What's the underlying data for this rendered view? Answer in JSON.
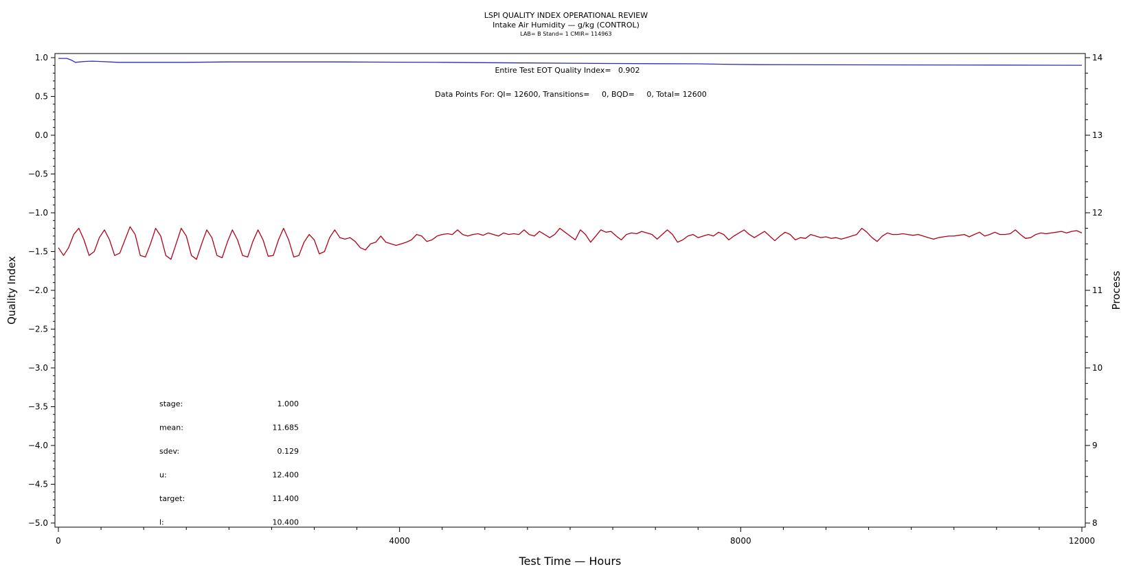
{
  "chart_data": {
    "type": "line",
    "title": "LSPI QUALITY INDEX OPERATIONAL REVIEW",
    "subtitle": "Intake Air Humidity — g/kg (CONTROL)",
    "subtitle2": "LAB= B Stand= 1 CMIR= 114963",
    "xlabel": "Test Time — Hours",
    "ylabel_left": "Quality Index",
    "ylabel_right": "Process",
    "xlim": [
      0,
      12000
    ],
    "ylim_left": [
      -5.0,
      1.0
    ],
    "ylim_right": [
      8,
      14
    ],
    "x_ticks": [
      "0",
      "4000",
      "8000",
      "12000"
    ],
    "y_left_ticks": [
      "1.0",
      "0.5",
      "0.0",
      "−0.5",
      "−1.0",
      "−1.5",
      "−2.0",
      "−2.5",
      "−3.0",
      "−3.5",
      "−4.0",
      "−4.5",
      "−5.0"
    ],
    "y_right_ticks": [
      "14",
      "13",
      "12",
      "11",
      "10",
      "9",
      "8"
    ],
    "annotation_eot": "Entire Test EOT Quality Index=   0.902",
    "annotation_points": "Data Points For: QI= 12600, Transitions=     0, BQD=     0, Total= 12600",
    "stats": [
      {
        "label": "stage:",
        "value": "1.000"
      },
      {
        "label": "mean:",
        "value": "11.685"
      },
      {
        "label": "sdev:",
        "value": "0.129"
      },
      {
        "label": "u:",
        "value": "12.400"
      },
      {
        "label": "target:",
        "value": "11.400"
      },
      {
        "label": "l:",
        "value": "10.400"
      }
    ],
    "series": [
      {
        "axis": "left",
        "color": "#2b2bb5",
        "points": [
          [
            0,
            0.99
          ],
          [
            100,
            0.99
          ],
          [
            150,
            0.97
          ],
          [
            200,
            0.94
          ],
          [
            300,
            0.95
          ],
          [
            400,
            0.955
          ],
          [
            500,
            0.95
          ],
          [
            700,
            0.94
          ],
          [
            1000,
            0.94
          ],
          [
            1500,
            0.94
          ],
          [
            2000,
            0.945
          ],
          [
            2500,
            0.945
          ],
          [
            3000,
            0.945
          ],
          [
            3200,
            0.945
          ],
          [
            3600,
            0.943
          ],
          [
            4000,
            0.942
          ],
          [
            4500,
            0.94
          ],
          [
            5000,
            0.935
          ],
          [
            5500,
            0.932
          ],
          [
            6000,
            0.928
          ],
          [
            6500,
            0.925
          ],
          [
            7000,
            0.922
          ],
          [
            7500,
            0.92
          ],
          [
            7800,
            0.915
          ],
          [
            8200,
            0.91
          ],
          [
            9000,
            0.908
          ],
          [
            10000,
            0.906
          ],
          [
            11000,
            0.904
          ],
          [
            12000,
            0.902
          ]
        ]
      },
      {
        "axis": "right",
        "color": "#b00018",
        "points": [
          [
            0,
            11.55
          ],
          [
            60,
            11.45
          ],
          [
            120,
            11.55
          ],
          [
            180,
            11.72
          ],
          [
            240,
            11.8
          ],
          [
            300,
            11.65
          ],
          [
            360,
            11.45
          ],
          [
            420,
            11.5
          ],
          [
            480,
            11.68
          ],
          [
            540,
            11.78
          ],
          [
            600,
            11.65
          ],
          [
            660,
            11.45
          ],
          [
            720,
            11.48
          ],
          [
            780,
            11.65
          ],
          [
            840,
            11.82
          ],
          [
            900,
            11.72
          ],
          [
            960,
            11.45
          ],
          [
            1020,
            11.43
          ],
          [
            1080,
            11.6
          ],
          [
            1140,
            11.8
          ],
          [
            1200,
            11.7
          ],
          [
            1260,
            11.45
          ],
          [
            1320,
            11.4
          ],
          [
            1380,
            11.6
          ],
          [
            1440,
            11.8
          ],
          [
            1500,
            11.7
          ],
          [
            1560,
            11.45
          ],
          [
            1620,
            11.4
          ],
          [
            1680,
            11.6
          ],
          [
            1740,
            11.78
          ],
          [
            1800,
            11.68
          ],
          [
            1860,
            11.45
          ],
          [
            1920,
            11.42
          ],
          [
            1980,
            11.62
          ],
          [
            2040,
            11.78
          ],
          [
            2100,
            11.65
          ],
          [
            2160,
            11.45
          ],
          [
            2220,
            11.43
          ],
          [
            2280,
            11.63
          ],
          [
            2340,
            11.78
          ],
          [
            2400,
            11.65
          ],
          [
            2460,
            11.44
          ],
          [
            2520,
            11.45
          ],
          [
            2580,
            11.65
          ],
          [
            2640,
            11.8
          ],
          [
            2700,
            11.65
          ],
          [
            2760,
            11.43
          ],
          [
            2820,
            11.45
          ],
          [
            2880,
            11.62
          ],
          [
            2940,
            11.72
          ],
          [
            3000,
            11.65
          ],
          [
            3060,
            11.47
          ],
          [
            3120,
            11.5
          ],
          [
            3180,
            11.68
          ],
          [
            3240,
            11.78
          ],
          [
            3300,
            11.68
          ],
          [
            3360,
            11.66
          ],
          [
            3420,
            11.68
          ],
          [
            3480,
            11.63
          ],
          [
            3540,
            11.55
          ],
          [
            3600,
            11.52
          ],
          [
            3660,
            11.6
          ],
          [
            3720,
            11.62
          ],
          [
            3780,
            11.7
          ],
          [
            3840,
            11.62
          ],
          [
            3900,
            11.6
          ],
          [
            3960,
            11.58
          ],
          [
            4020,
            11.6
          ],
          [
            4080,
            11.62
          ],
          [
            4140,
            11.65
          ],
          [
            4200,
            11.72
          ],
          [
            4260,
            11.7
          ],
          [
            4320,
            11.63
          ],
          [
            4380,
            11.65
          ],
          [
            4440,
            11.7
          ],
          [
            4500,
            11.72
          ],
          [
            4560,
            11.73
          ],
          [
            4620,
            11.72
          ],
          [
            4680,
            11.78
          ],
          [
            4740,
            11.72
          ],
          [
            4800,
            11.7
          ],
          [
            4860,
            11.72
          ],
          [
            4920,
            11.73
          ],
          [
            4980,
            11.71
          ],
          [
            5040,
            11.74
          ],
          [
            5100,
            11.72
          ],
          [
            5160,
            11.7
          ],
          [
            5220,
            11.74
          ],
          [
            5280,
            11.72
          ],
          [
            5340,
            11.73
          ],
          [
            5400,
            11.72
          ],
          [
            5460,
            11.78
          ],
          [
            5520,
            11.72
          ],
          [
            5580,
            11.7
          ],
          [
            5640,
            11.76
          ],
          [
            5700,
            11.72
          ],
          [
            5760,
            11.68
          ],
          [
            5820,
            11.72
          ],
          [
            5880,
            11.8
          ],
          [
            5940,
            11.75
          ],
          [
            6000,
            11.7
          ],
          [
            6060,
            11.65
          ],
          [
            6120,
            11.78
          ],
          [
            6180,
            11.72
          ],
          [
            6240,
            11.62
          ],
          [
            6300,
            11.7
          ],
          [
            6360,
            11.78
          ],
          [
            6420,
            11.75
          ],
          [
            6480,
            11.76
          ],
          [
            6540,
            11.7
          ],
          [
            6600,
            11.65
          ],
          [
            6660,
            11.72
          ],
          [
            6720,
            11.74
          ],
          [
            6780,
            11.73
          ],
          [
            6840,
            11.76
          ],
          [
            6900,
            11.74
          ],
          [
            6960,
            11.72
          ],
          [
            7020,
            11.66
          ],
          [
            7080,
            11.72
          ],
          [
            7140,
            11.78
          ],
          [
            7200,
            11.72
          ],
          [
            7260,
            11.62
          ],
          [
            7320,
            11.65
          ],
          [
            7380,
            11.7
          ],
          [
            7440,
            11.72
          ],
          [
            7500,
            11.68
          ],
          [
            7560,
            11.7
          ],
          [
            7620,
            11.72
          ],
          [
            7680,
            11.7
          ],
          [
            7740,
            11.75
          ],
          [
            7800,
            11.72
          ],
          [
            7860,
            11.65
          ],
          [
            7920,
            11.7
          ],
          [
            7980,
            11.74
          ],
          [
            8040,
            11.78
          ],
          [
            8100,
            11.72
          ],
          [
            8160,
            11.68
          ],
          [
            8220,
            11.72
          ],
          [
            8280,
            11.76
          ],
          [
            8340,
            11.7
          ],
          [
            8400,
            11.64
          ],
          [
            8460,
            11.7
          ],
          [
            8520,
            11.75
          ],
          [
            8580,
            11.72
          ],
          [
            8640,
            11.65
          ],
          [
            8700,
            11.68
          ],
          [
            8760,
            11.67
          ],
          [
            8820,
            11.72
          ],
          [
            8880,
            11.7
          ],
          [
            8940,
            11.68
          ],
          [
            9000,
            11.69
          ],
          [
            9060,
            11.67
          ],
          [
            9120,
            11.68
          ],
          [
            9180,
            11.66
          ],
          [
            9240,
            11.68
          ],
          [
            9300,
            11.7
          ],
          [
            9360,
            11.72
          ],
          [
            9420,
            11.8
          ],
          [
            9480,
            11.75
          ],
          [
            9540,
            11.68
          ],
          [
            9600,
            11.63
          ],
          [
            9660,
            11.7
          ],
          [
            9720,
            11.74
          ],
          [
            9780,
            11.72
          ],
          [
            9840,
            11.72
          ],
          [
            9900,
            11.73
          ],
          [
            9960,
            11.72
          ],
          [
            10020,
            11.71
          ],
          [
            10080,
            11.72
          ],
          [
            10140,
            11.7
          ],
          [
            10200,
            11.68
          ],
          [
            10260,
            11.66
          ],
          [
            10320,
            11.68
          ],
          [
            10380,
            11.69
          ],
          [
            10440,
            11.7
          ],
          [
            10500,
            11.7
          ],
          [
            10560,
            11.71
          ],
          [
            10620,
            11.72
          ],
          [
            10680,
            11.69
          ],
          [
            10740,
            11.72
          ],
          [
            10800,
            11.75
          ],
          [
            10860,
            11.7
          ],
          [
            10920,
            11.72
          ],
          [
            10980,
            11.75
          ],
          [
            11040,
            11.72
          ],
          [
            11100,
            11.72
          ],
          [
            11160,
            11.73
          ],
          [
            11220,
            11.78
          ],
          [
            11280,
            11.72
          ],
          [
            11340,
            11.67
          ],
          [
            11400,
            11.68
          ],
          [
            11460,
            11.72
          ],
          [
            11520,
            11.74
          ],
          [
            11580,
            11.73
          ],
          [
            11640,
            11.74
          ],
          [
            11700,
            11.75
          ],
          [
            11760,
            11.76
          ],
          [
            11820,
            11.74
          ],
          [
            11880,
            11.76
          ],
          [
            11940,
            11.77
          ],
          [
            12000,
            11.74
          ]
        ]
      }
    ]
  }
}
